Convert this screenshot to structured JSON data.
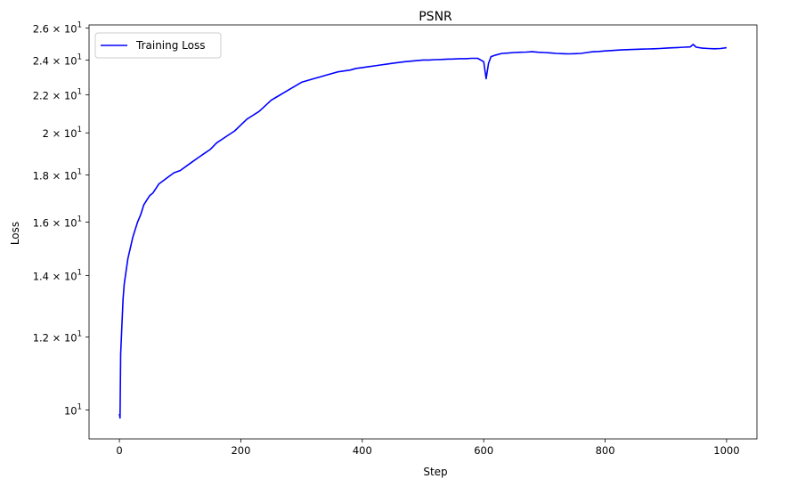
{
  "chart_data": {
    "type": "line",
    "title": "PSNR",
    "xlabel": "Step",
    "ylabel": "Loss",
    "xlim": [
      -50,
      1050
    ],
    "ylim": [
      9.3,
      26.2
    ],
    "yscale": "log",
    "grid": false,
    "legend_position": "upper-left",
    "x_ticks": [
      0,
      200,
      400,
      600,
      800,
      1000
    ],
    "x_tick_labels": [
      "0",
      "200",
      "400",
      "600",
      "800",
      "1000"
    ],
    "y_ticks": [
      10,
      12,
      14,
      16,
      18,
      20,
      22,
      24,
      26
    ],
    "y_tick_labels": [
      {
        "mantissa": "",
        "base": "10",
        "exp": "1"
      },
      {
        "mantissa": "1.2",
        "base": "10",
        "exp": "1"
      },
      {
        "mantissa": "1.4",
        "base": "10",
        "exp": "1"
      },
      {
        "mantissa": "1.6",
        "base": "10",
        "exp": "1"
      },
      {
        "mantissa": "1.8",
        "base": "10",
        "exp": "1"
      },
      {
        "mantissa": "2",
        "base": "10",
        "exp": "1"
      },
      {
        "mantissa": "2.2",
        "base": "10",
        "exp": "1"
      },
      {
        "mantissa": "2.4",
        "base": "10",
        "exp": "1"
      },
      {
        "mantissa": "2.6",
        "base": "10",
        "exp": "1"
      }
    ],
    "series": [
      {
        "name": "Training Loss",
        "color": "#0000ff",
        "points": [
          [
            0,
            9.9
          ],
          [
            1,
            9.8
          ],
          [
            2,
            11.5
          ],
          [
            4,
            12.3
          ],
          [
            6,
            13.2
          ],
          [
            8,
            13.7
          ],
          [
            10,
            14.0
          ],
          [
            14,
            14.6
          ],
          [
            18,
            15.0
          ],
          [
            22,
            15.4
          ],
          [
            26,
            15.7
          ],
          [
            30,
            16.0
          ],
          [
            35,
            16.3
          ],
          [
            40,
            16.7
          ],
          [
            45,
            16.9
          ],
          [
            50,
            17.1
          ],
          [
            55,
            17.2
          ],
          [
            60,
            17.4
          ],
          [
            65,
            17.6
          ],
          [
            70,
            17.7
          ],
          [
            80,
            17.9
          ],
          [
            90,
            18.1
          ],
          [
            100,
            18.2
          ],
          [
            110,
            18.4
          ],
          [
            120,
            18.6
          ],
          [
            130,
            18.8
          ],
          [
            140,
            19.0
          ],
          [
            150,
            19.2
          ],
          [
            160,
            19.5
          ],
          [
            170,
            19.7
          ],
          [
            180,
            19.9
          ],
          [
            190,
            20.1
          ],
          [
            200,
            20.4
          ],
          [
            210,
            20.7
          ],
          [
            220,
            20.9
          ],
          [
            230,
            21.1
          ],
          [
            240,
            21.4
          ],
          [
            250,
            21.7
          ],
          [
            260,
            21.9
          ],
          [
            270,
            22.1
          ],
          [
            280,
            22.3
          ],
          [
            290,
            22.5
          ],
          [
            300,
            22.7
          ],
          [
            310,
            22.8
          ],
          [
            320,
            22.9
          ],
          [
            330,
            23.0
          ],
          [
            340,
            23.1
          ],
          [
            350,
            23.2
          ],
          [
            360,
            23.3
          ],
          [
            370,
            23.35
          ],
          [
            380,
            23.4
          ],
          [
            390,
            23.5
          ],
          [
            400,
            23.55
          ],
          [
            410,
            23.6
          ],
          [
            420,
            23.65
          ],
          [
            430,
            23.7
          ],
          [
            440,
            23.75
          ],
          [
            450,
            23.8
          ],
          [
            460,
            23.85
          ],
          [
            470,
            23.9
          ],
          [
            480,
            23.93
          ],
          [
            490,
            23.96
          ],
          [
            500,
            24.0
          ],
          [
            510,
            24.0
          ],
          [
            520,
            24.02
          ],
          [
            530,
            24.03
          ],
          [
            540,
            24.05
          ],
          [
            550,
            24.06
          ],
          [
            560,
            24.08
          ],
          [
            570,
            24.08
          ],
          [
            580,
            24.1
          ],
          [
            590,
            24.1
          ],
          [
            600,
            23.9
          ],
          [
            604,
            22.9
          ],
          [
            608,
            23.8
          ],
          [
            612,
            24.2
          ],
          [
            620,
            24.3
          ],
          [
            630,
            24.4
          ],
          [
            640,
            24.42
          ],
          [
            650,
            24.45
          ],
          [
            660,
            24.47
          ],
          [
            670,
            24.48
          ],
          [
            680,
            24.5
          ],
          [
            690,
            24.47
          ],
          [
            700,
            24.45
          ],
          [
            710,
            24.43
          ],
          [
            720,
            24.4
          ],
          [
            730,
            24.38
          ],
          [
            740,
            24.37
          ],
          [
            750,
            24.38
          ],
          [
            760,
            24.4
          ],
          [
            770,
            24.45
          ],
          [
            780,
            24.5
          ],
          [
            790,
            24.52
          ],
          [
            800,
            24.55
          ],
          [
            810,
            24.57
          ],
          [
            820,
            24.6
          ],
          [
            830,
            24.62
          ],
          [
            840,
            24.63
          ],
          [
            850,
            24.65
          ],
          [
            860,
            24.66
          ],
          [
            870,
            24.67
          ],
          [
            880,
            24.68
          ],
          [
            890,
            24.7
          ],
          [
            900,
            24.72
          ],
          [
            910,
            24.74
          ],
          [
            920,
            24.76
          ],
          [
            930,
            24.78
          ],
          [
            940,
            24.8
          ],
          [
            945,
            24.95
          ],
          [
            950,
            24.78
          ],
          [
            960,
            24.72
          ],
          [
            970,
            24.7
          ],
          [
            980,
            24.68
          ],
          [
            990,
            24.7
          ],
          [
            1000,
            24.75
          ]
        ]
      }
    ]
  }
}
